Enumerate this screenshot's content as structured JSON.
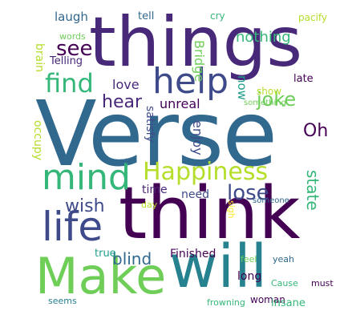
{
  "colors": {
    "dark_purple": "#440154",
    "purple": "#482878",
    "indigo": "#3e4a89",
    "blue": "#31688e",
    "teal": "#26828e",
    "green_teal": "#1f9e89",
    "green": "#35b779",
    "light_green": "#6ece58",
    "lime": "#b5de2b",
    "yellow": "#fde725"
  },
  "words": {
    "verse": "Verse",
    "things": "things",
    "think": "think",
    "make": "Make",
    "will": "will",
    "life": "life",
    "mind": "mind",
    "help": "help",
    "happiness": "Happiness",
    "find": "find",
    "see": "see",
    "hear": "hear",
    "joke": "joke",
    "lose": "lose",
    "wish": "wish",
    "blind": "blind",
    "oh": "Oh",
    "state": "state",
    "laugh": "laugh",
    "tell": "tell",
    "cry": "cry",
    "pacify": "pacify",
    "nothing": "nothing",
    "words": "words",
    "brain": "brain",
    "telling": "Telling",
    "bridge": "Bridge",
    "now": "now",
    "love": "love",
    "unreal": "unreal",
    "show": "show",
    "late": "late",
    "something": "something",
    "enjoy": "enjoy",
    "satisfy": "satisfy",
    "occupy": "occupy",
    "time": "time",
    "need": "need",
    "someone": "someone",
    "day": "day",
    "sigh": "sigh",
    "people": "People",
    "true": "true",
    "finished": "Finished",
    "long": "long",
    "feel": "feel",
    "yeah": "yeah",
    "cause": "Cause",
    "must": "must",
    "seems": "seems",
    "frowning": "frowning",
    "woman": "woman",
    "insane": "insane"
  }
}
